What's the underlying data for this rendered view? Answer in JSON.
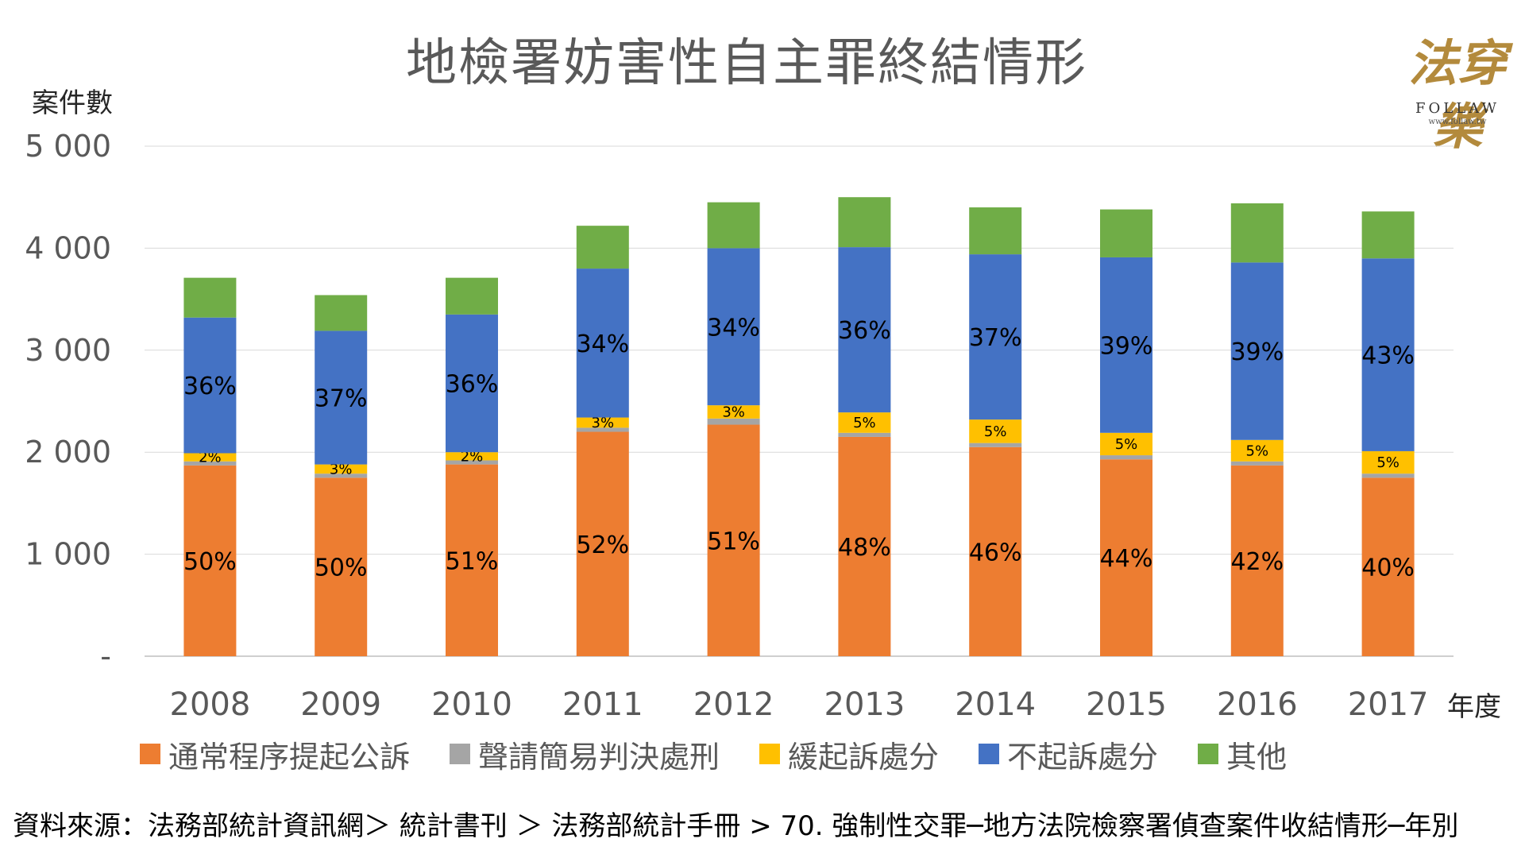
{
  "title": "地檢署妨害性自主罪終結情形",
  "y_unit_label": "案件數",
  "x_unit_label": "年度",
  "logo": {
    "script": "法穿樂",
    "name": "FOLLAW",
    "url": "www.follaw.tw"
  },
  "source": "資料來源：法務部統計資訊網＞ 統計書刊 ＞ 法務部統計手冊 > 70. 強制性交罪─地方法院檢察署偵查案件收結情形─年別",
  "chart_data": {
    "type": "bar",
    "stacked": true,
    "title": "地檢署妨害性自主罪終結情形",
    "xlabel": "年度",
    "ylabel": "案件數",
    "ylim": [
      0,
      5000
    ],
    "y_ticks": [
      0,
      1000,
      2000,
      3000,
      4000,
      5000
    ],
    "y_tick_labels": [
      "-",
      "1 000",
      "2 000",
      "3 000",
      "4 000",
      "5 000"
    ],
    "grid": true,
    "legend_position": "bottom",
    "categories": [
      "2008",
      "2009",
      "2010",
      "2011",
      "2012",
      "2013",
      "2014",
      "2015",
      "2016",
      "2017"
    ],
    "series": [
      {
        "name": "通常程序提起公訴",
        "color": "#ED7D31",
        "values": [
          1870,
          1750,
          1880,
          2200,
          2270,
          2150,
          2050,
          1930,
          1870,
          1750
        ],
        "labels": [
          "50%",
          "50%",
          "51%",
          "52%",
          "51%",
          "48%",
          "46%",
          "44%",
          "42%",
          "40%"
        ]
      },
      {
        "name": "聲請簡易判決處刑",
        "color": "#A5A5A5",
        "values": [
          40,
          40,
          40,
          40,
          60,
          40,
          40,
          40,
          40,
          40
        ],
        "labels": []
      },
      {
        "name": "緩起訴處分",
        "color": "#FFC000",
        "values": [
          80,
          90,
          80,
          100,
          130,
          200,
          230,
          220,
          210,
          220
        ],
        "labels": [
          "2%",
          "3%",
          "2%",
          "3%",
          "3%",
          "5%",
          "5%",
          "5%",
          "5%",
          "5%"
        ]
      },
      {
        "name": "不起訴處分",
        "color": "#4472C4",
        "values": [
          1330,
          1310,
          1350,
          1460,
          1540,
          1620,
          1620,
          1720,
          1740,
          1890
        ],
        "labels": [
          "36%",
          "37%",
          "36%",
          "34%",
          "34%",
          "36%",
          "37%",
          "39%",
          "39%",
          "43%"
        ]
      },
      {
        "name": "其他",
        "color": "#70AD47",
        "values": [
          390,
          350,
          360,
          420,
          450,
          490,
          460,
          470,
          580,
          460
        ],
        "labels": []
      }
    ]
  }
}
